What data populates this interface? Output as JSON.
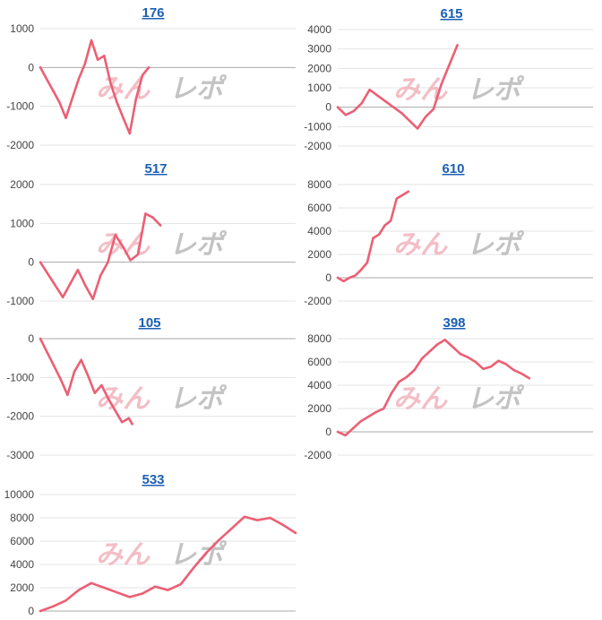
{
  "watermark": {
    "part1": "みん",
    "part2": "レポ"
  },
  "colors": {
    "series": "#ec5f74",
    "title_link": "#1a5fb4",
    "grid": "#e3e3e3"
  },
  "chart_data": [
    {
      "type": "line",
      "title": "176",
      "ylim": [
        -2000,
        1000
      ],
      "yticks": [
        -2000,
        -1000,
        0,
        1000
      ],
      "x": [
        0,
        3,
        6,
        9,
        12,
        15,
        18,
        21,
        24,
        27,
        30,
        33,
        36,
        39,
        42,
        45,
        48,
        51
      ],
      "values": [
        0,
        -300,
        -600,
        -900,
        -1300,
        -800,
        -300,
        100,
        700,
        200,
        300,
        -400,
        -900,
        -1300,
        -1700,
        -800,
        -200,
        0
      ],
      "xmax": 120,
      "grid": true
    },
    {
      "type": "line",
      "title": "615",
      "ylim": [
        -2000,
        4000
      ],
      "yticks": [
        -2000,
        -1000,
        0,
        1000,
        2000,
        3000,
        4000
      ],
      "x": [
        0,
        4,
        8,
        12,
        16,
        20,
        24,
        28,
        32,
        36,
        40,
        44,
        48,
        52,
        56,
        60
      ],
      "values": [
        0,
        -400,
        -200,
        200,
        900,
        600,
        300,
        0,
        -300,
        -700,
        -1100,
        -500,
        -100,
        1200,
        2200,
        3200
      ],
      "xmax": 128,
      "grid": true
    },
    {
      "type": "line",
      "title": "517",
      "ylim": [
        -1000,
        2000
      ],
      "yticks": [
        -1000,
        0,
        1000,
        2000
      ],
      "x": [
        0,
        3,
        6,
        9,
        12,
        15,
        18,
        21,
        24,
        27,
        30,
        33,
        36,
        39,
        42,
        45,
        48
      ],
      "values": [
        0,
        -300,
        -600,
        -900,
        -550,
        -200,
        -600,
        -950,
        -350,
        0,
        700,
        400,
        50,
        200,
        1250,
        1150,
        950
      ],
      "xmax": 102,
      "grid": true
    },
    {
      "type": "line",
      "title": "610",
      "ylim": [
        -2000,
        8000
      ],
      "yticks": [
        -2000,
        0,
        2000,
        4000,
        6000,
        8000
      ],
      "x": [
        0,
        3,
        6,
        9,
        12,
        15,
        18,
        21,
        24,
        27,
        30,
        33,
        36
      ],
      "values": [
        0,
        -300,
        0,
        200,
        700,
        1300,
        3400,
        3700,
        4500,
        4900,
        6800,
        7100,
        7400
      ],
      "xmax": 130,
      "grid": true
    },
    {
      "type": "line",
      "title": "105",
      "ylim": [
        -3000,
        0
      ],
      "yticks": [
        -3000,
        -2000,
        -1000,
        0
      ],
      "x": [
        0,
        4,
        8,
        12,
        16,
        20,
        24,
        28,
        32,
        36,
        40,
        44,
        48,
        52,
        54
      ],
      "values": [
        0,
        -350,
        -700,
        -1050,
        -1450,
        -850,
        -550,
        -950,
        -1400,
        -1200,
        -1550,
        -1850,
        -2150,
        -2050,
        -2200
      ],
      "xmax": 150,
      "grid": true
    },
    {
      "type": "line",
      "title": "398",
      "ylim": [
        -2000,
        8000
      ],
      "yticks": [
        -2000,
        0,
        2000,
        4000,
        6000,
        8000
      ],
      "x": [
        0,
        3,
        6,
        9,
        12,
        15,
        18,
        21,
        24,
        27,
        30,
        33,
        36,
        39,
        42,
        45,
        48,
        51,
        54,
        57,
        60,
        63,
        66,
        69,
        72,
        75
      ],
      "values": [
        0,
        -300,
        300,
        900,
        1300,
        1700,
        2000,
        3300,
        4300,
        4700,
        5300,
        6300,
        6900,
        7500,
        7900,
        7300,
        6700,
        6400,
        6000,
        5400,
        5600,
        6100,
        5800,
        5300,
        5000,
        4600
      ],
      "xmax": 100,
      "grid": true
    },
    {
      "type": "line",
      "title": "533",
      "ylim": [
        0,
        10000
      ],
      "yticks": [
        0,
        2000,
        4000,
        6000,
        8000,
        10000
      ],
      "x": [
        0,
        5,
        10,
        15,
        20,
        25,
        30,
        35,
        40,
        45,
        50,
        55,
        60,
        65,
        70,
        75,
        80,
        85,
        90,
        95,
        100
      ],
      "values": [
        0,
        400,
        900,
        1800,
        2400,
        2000,
        1600,
        1200,
        1500,
        2100,
        1800,
        2300,
        3700,
        5000,
        6100,
        7100,
        8100,
        7800,
        8000,
        7400,
        6700
      ],
      "xmax": 100,
      "grid": true
    }
  ]
}
